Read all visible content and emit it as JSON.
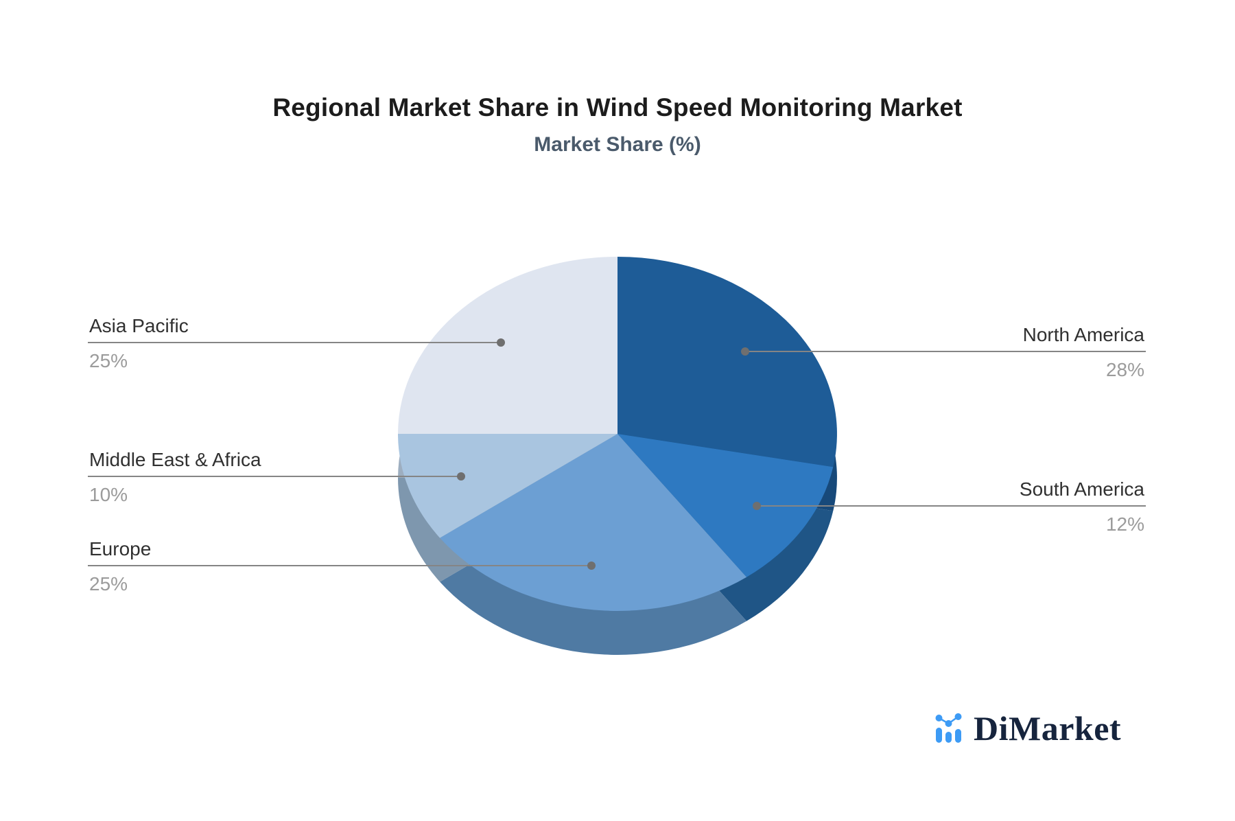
{
  "chart_data": {
    "type": "pie",
    "title": "Regional Market Share in Wind Speed Monitoring Market",
    "subtitle": "Market Share (%)",
    "unit": "%",
    "legend_position": "none",
    "style": "3d-pie, callout labels with leader lines, white background",
    "segments": [
      {
        "label": "North America",
        "value": 28,
        "pct_label": "28%",
        "color": "#1E5C97",
        "side_color": "#17497A"
      },
      {
        "label": "South America",
        "value": 12,
        "pct_label": "12%",
        "color": "#2E79C1",
        "side_color": "#1F5586"
      },
      {
        "label": "Europe",
        "value": 25,
        "pct_label": "25%",
        "color": "#6C9FD3",
        "side_color": "#4F7AA3"
      },
      {
        "label": "Middle East & Africa",
        "value": 10,
        "pct_label": "10%",
        "color": "#A9C5E0",
        "side_color": "#7E97AE"
      },
      {
        "label": "Asia Pacific",
        "value": 25,
        "pct_label": "25%",
        "color": "#DFE5F0",
        "side_color": "#9DAEC0"
      }
    ],
    "callout_colors": {
      "line": "#858585",
      "dot": "#6f6f6f",
      "name_text": "#303030",
      "pct_text": "#9b9b9b"
    }
  },
  "branding": {
    "logo_text": "DiMarket",
    "logo_icon": "bar-chart-with-trend-dots-icon",
    "logo_icon_color": "#3D9BF5",
    "logo_text_color": "#16243d"
  }
}
